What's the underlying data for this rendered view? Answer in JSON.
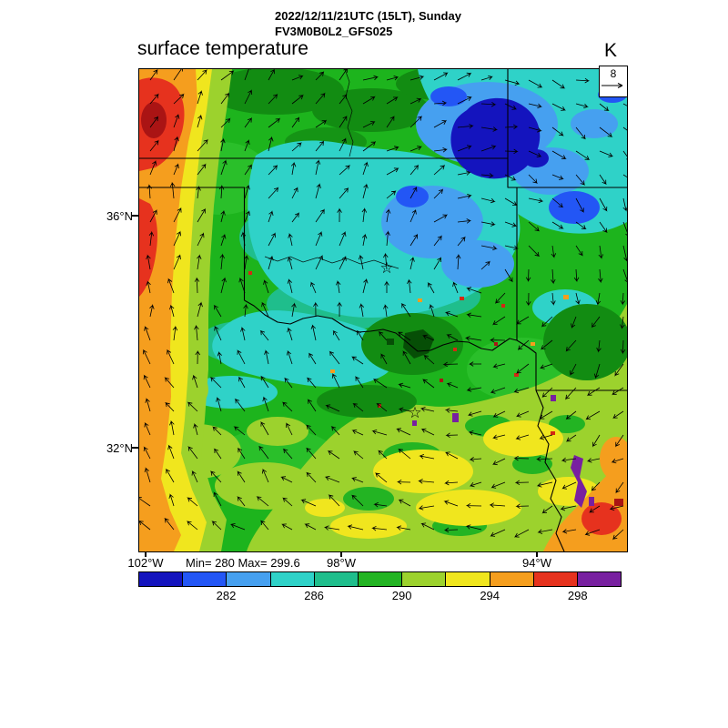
{
  "header": {
    "line1": "2022/12/11/21UTC (15LT), Sunday",
    "line2": "FV3M0B0L2_GFS025"
  },
  "plot": {
    "title": "surface temperature",
    "units": "K"
  },
  "wind_scale": {
    "reference_label": "8"
  },
  "axis": {
    "y": [
      {
        "label": "36°N"
      },
      {
        "label": "32°N"
      }
    ],
    "x": [
      {
        "label": "102°W"
      },
      {
        "label": "98°W"
      },
      {
        "label": "94°W"
      }
    ]
  },
  "stats": {
    "text": "Min= 280 Max= 299.6"
  },
  "map": {
    "star": "☆"
  },
  "colorbar": {
    "colors": [
      "#1414be",
      "#2356f5",
      "#46a0f0",
      "#2fd2c8",
      "#1fbe8c",
      "#23b423",
      "#9cd22d",
      "#f0e61e",
      "#f59e1e",
      "#e6321e",
      "#7820a0"
    ],
    "tick_labels": [
      "282",
      "286",
      "290",
      "294",
      "298"
    ]
  },
  "chart_data": {
    "type": "heatmap",
    "title": "surface temperature",
    "units": "K",
    "valid_time": "2022/12/11/21UTC (15LT), Sunday",
    "model": "FV3M0B0L2_GFS025",
    "min": 280,
    "max": 299.6,
    "contour_interval_K": 2,
    "colorbar_levels": [
      282,
      286,
      290,
      294,
      298
    ],
    "colorbar_colors": [
      "#1414be",
      "#2356f5",
      "#46a0f0",
      "#2fd2c8",
      "#1fbe8c",
      "#23b423",
      "#9cd22d",
      "#f0e61e",
      "#f59e1e",
      "#e6321e",
      "#7820a0"
    ],
    "x_axis_ticks": [
      "102°W",
      "98°W",
      "94°W"
    ],
    "y_axis_ticks": [
      "36°N",
      "32°N"
    ],
    "wind_vector_reference": "8",
    "overlays": [
      "wind vector arrows",
      "state borders (Oklahoma, Texas, Kansas, Missouri, Arkansas)",
      "two star city markers"
    ],
    "regions": [
      {
        "area": "far west edge band",
        "approx_range_K": "294-298"
      },
      {
        "area": "northwest corner blob",
        "approx_range_K": "296-299.6"
      },
      {
        "area": "north-central and northeast",
        "approx_range_K": "282-286"
      },
      {
        "area": "deep pocket northeast",
        "approx_range_K": "280-282"
      },
      {
        "area": "central (around northern star marker)",
        "approx_range_K": "284-288"
      },
      {
        "area": "west-central and south-central",
        "approx_range_K": "288-290"
      },
      {
        "area": "southeast quadrant",
        "approx_range_K": "290-294"
      },
      {
        "area": "far southeast corner",
        "approx_range_K": "294-298"
      },
      {
        "area": "scattered specks southeast",
        "approx_range_K": ">298"
      }
    ]
  }
}
